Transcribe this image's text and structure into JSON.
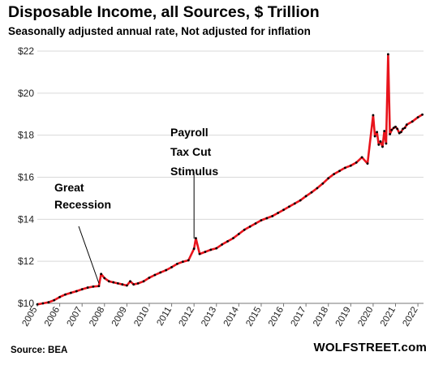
{
  "chart_data": {
    "type": "line",
    "title": "Disposable  Income, all Sources, $ Trillion",
    "subtitle": "Seasonally adjusted annual rate, Not adjusted for inflation",
    "source": "Source: BEA",
    "brand": "WOLFSTREET.com",
    "ylim": [
      10,
      22
    ],
    "yticks": [
      10,
      12,
      14,
      16,
      18,
      20,
      22
    ],
    "ytick_labels": [
      "$10",
      "$12",
      "$14",
      "$16",
      "$18",
      "$20",
      "$22"
    ],
    "xlim": [
      2005,
      2022.25
    ],
    "xticks": [
      2005,
      2006,
      2007,
      2008,
      2009,
      2010,
      2011,
      2012,
      2013,
      2014,
      2015,
      2016,
      2017,
      2018,
      2019,
      2020,
      2021,
      2022
    ],
    "grid": "horizontal",
    "legend": "none",
    "colors": {
      "line": "#e8141c",
      "markers": "#000000",
      "grid": "#d9d9d9",
      "axis": "#777777"
    },
    "annotations": [
      {
        "lines": [
          "Great",
          "Recession"
        ],
        "x": 2007.75,
        "y": 10.8
      },
      {
        "lines": [
          "Payroll",
          "Tax Cut",
          "Stimulus"
        ],
        "x": 2012.0,
        "y": 13.0
      }
    ],
    "series": [
      {
        "x": [
          2005.0,
          2005.25,
          2005.5,
          2005.75,
          2006.0,
          2006.25,
          2006.5,
          2006.75,
          2007.0,
          2007.25,
          2007.5,
          2007.75,
          2007.85,
          2008.0,
          2008.2,
          2008.4,
          2008.6,
          2008.8,
          2009.0,
          2009.15,
          2009.3,
          2009.5,
          2009.75,
          2010.0,
          2010.25,
          2010.5,
          2010.75,
          2011.0,
          2011.25,
          2011.5,
          2011.75,
          2012.0,
          2012.08,
          2012.25,
          2012.5,
          2012.75,
          2013.0,
          2013.25,
          2013.5,
          2013.75,
          2014.0,
          2014.25,
          2014.5,
          2014.75,
          2015.0,
          2015.25,
          2015.5,
          2015.75,
          2016.0,
          2016.25,
          2016.5,
          2016.75,
          2017.0,
          2017.25,
          2017.5,
          2017.75,
          2018.0,
          2018.25,
          2018.5,
          2018.75,
          2019.0,
          2019.25,
          2019.5,
          2019.75,
          2020.0,
          2020.08,
          2020.17,
          2020.25,
          2020.33,
          2020.42,
          2020.5,
          2020.58,
          2020.67,
          2020.75,
          2020.83,
          2020.92,
          2021.0,
          2021.08,
          2021.17,
          2021.25,
          2021.33,
          2021.42,
          2021.5,
          2021.75,
          2022.0,
          2022.2
        ],
        "y": [
          9.95,
          10.0,
          10.05,
          10.15,
          10.3,
          10.42,
          10.5,
          10.58,
          10.67,
          10.75,
          10.8,
          10.82,
          11.4,
          11.2,
          11.05,
          11.0,
          10.95,
          10.9,
          10.85,
          11.05,
          10.9,
          10.95,
          11.05,
          11.22,
          11.35,
          11.47,
          11.58,
          11.72,
          11.88,
          11.98,
          12.05,
          12.6,
          13.1,
          12.35,
          12.45,
          12.55,
          12.62,
          12.8,
          12.95,
          13.1,
          13.3,
          13.5,
          13.65,
          13.8,
          13.95,
          14.05,
          14.15,
          14.3,
          14.45,
          14.6,
          14.75,
          14.9,
          15.1,
          15.28,
          15.48,
          15.7,
          15.95,
          16.15,
          16.3,
          16.45,
          16.55,
          16.7,
          16.95,
          16.65,
          18.95,
          17.95,
          18.15,
          17.55,
          17.7,
          17.45,
          18.2,
          17.6,
          21.85,
          18.05,
          18.25,
          18.35,
          18.4,
          18.3,
          18.1,
          18.15,
          18.3,
          18.35,
          18.5,
          18.65,
          18.85,
          18.98
        ]
      }
    ]
  }
}
